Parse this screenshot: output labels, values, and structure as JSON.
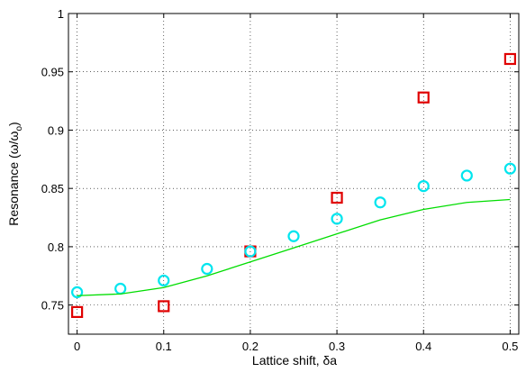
{
  "chart_data": {
    "type": "scatter",
    "title": "",
    "xlabel": "Lattice shift, δa",
    "ylabel": "Resonance (ω/ω",
    "ylabel_subscript": "o",
    "ylabel_suffix": ")",
    "xlim": [
      -0.01,
      0.51
    ],
    "ylim": [
      0.725,
      1.0
    ],
    "x_ticks": [
      0,
      0.1,
      0.2,
      0.3,
      0.4,
      0.5
    ],
    "x_tick_labels": [
      "0",
      "0.1",
      "0.2",
      "0.3",
      "0.4",
      "0.5"
    ],
    "y_ticks": [
      0.75,
      0.8,
      0.85,
      0.9,
      0.95,
      1.0
    ],
    "y_tick_labels": [
      "0.75",
      "0.8",
      "0.85",
      "0.9",
      "0.95",
      "1"
    ],
    "grid": true,
    "legend": "none",
    "series": [
      {
        "marker": "square",
        "color": "#e00000",
        "x": [
          0,
          0.1,
          0.2,
          0.3,
          0.4,
          0.5
        ],
        "y": [
          0.744,
          0.749,
          0.796,
          0.842,
          0.928,
          0.961
        ]
      },
      {
        "marker": "circle",
        "color": "#00e5ee",
        "x": [
          0,
          0.05,
          0.1,
          0.15,
          0.2,
          0.25,
          0.3,
          0.35,
          0.4,
          0.45,
          0.5
        ],
        "y": [
          0.761,
          0.764,
          0.771,
          0.781,
          0.796,
          0.809,
          0.824,
          0.838,
          0.852,
          0.861,
          0.867
        ]
      },
      {
        "marker": "line",
        "color": "#00dd00",
        "x": [
          0,
          0.05,
          0.1,
          0.15,
          0.2,
          0.25,
          0.3,
          0.35,
          0.4,
          0.45,
          0.5
        ],
        "y": [
          0.758,
          0.7595,
          0.765,
          0.775,
          0.787,
          0.799,
          0.811,
          0.823,
          0.832,
          0.838,
          0.8405
        ]
      }
    ]
  }
}
